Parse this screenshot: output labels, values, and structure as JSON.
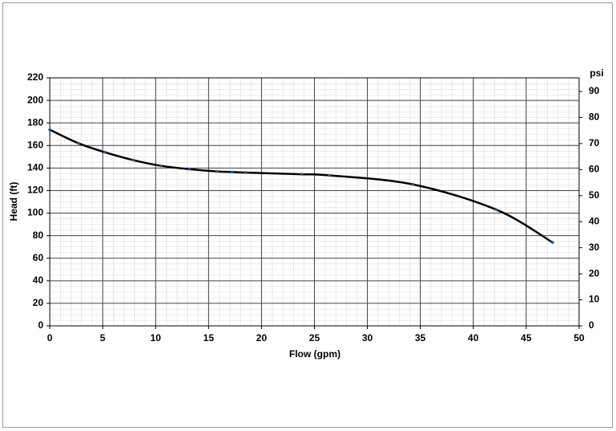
{
  "chart_data": {
    "type": "line",
    "xlabel": "Flow (gpm)",
    "ylabel": "Head (ft)",
    "y2label": "psi",
    "x": [
      0,
      2.7,
      5.2,
      7.9,
      10.5,
      13.2,
      15.8,
      17.2,
      18.5,
      23.8,
      26.4,
      34.3,
      42.2,
      47.5
    ],
    "values": [
      174,
      162,
      154,
      147,
      142,
      139,
      137,
      136.5,
      136,
      134.5,
      133.5,
      125.5,
      103,
      74
    ],
    "color": "#000000",
    "marker_color": "#2e5c8a",
    "xlim": [
      0,
      50
    ],
    "xticks": [
      0,
      5,
      10,
      15,
      20,
      25,
      30,
      35,
      40,
      45,
      50
    ],
    "ylim": [
      0,
      220
    ],
    "yticks": [
      0,
      20,
      40,
      60,
      80,
      100,
      120,
      140,
      160,
      180,
      200,
      220
    ],
    "y2lim": [
      0,
      95.24
    ],
    "y2ticks": [
      0,
      10,
      20,
      30,
      40,
      50,
      60,
      70,
      80,
      90
    ],
    "grid": true
  }
}
